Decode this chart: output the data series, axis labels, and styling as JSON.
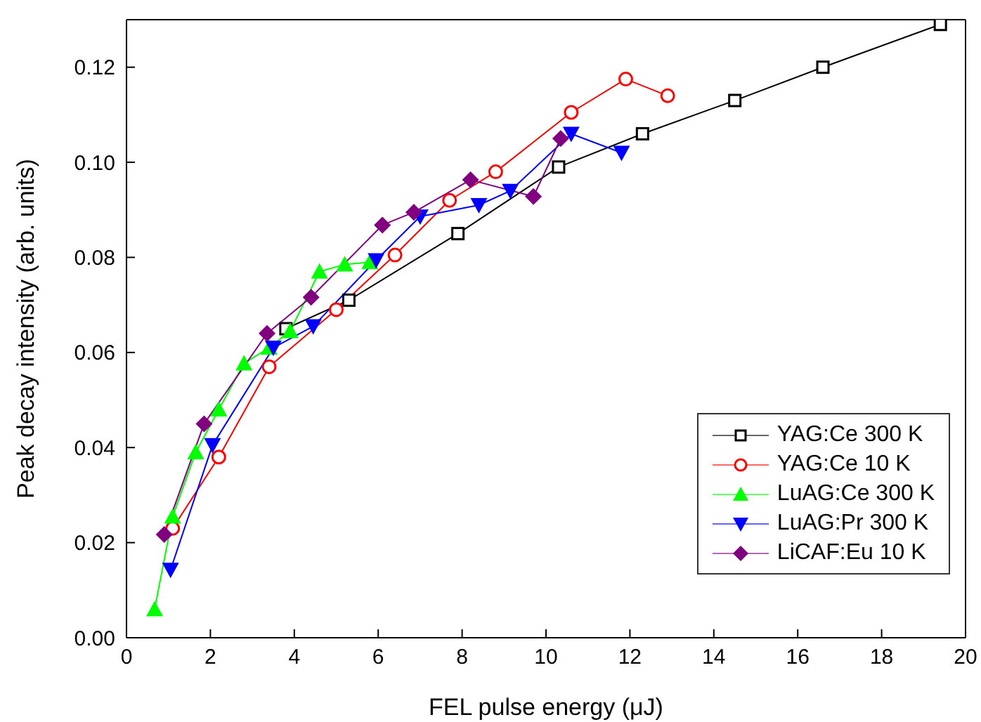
{
  "chart_data": {
    "type": "line",
    "xlabel": "FEL pulse energy (μJ)",
    "ylabel": "Peak decay intensity (arb. units)",
    "xlim": [
      0,
      20
    ],
    "xticks": [
      0,
      2,
      4,
      6,
      8,
      10,
      12,
      14,
      16,
      18,
      20
    ],
    "ylim": [
      0,
      0.13
    ],
    "yticks": [
      {
        "value": 0,
        "label": "0.00"
      },
      0.02,
      0.04,
      0.06,
      0.08,
      {
        "value": 0.1,
        "label": "0.10"
      },
      0.12
    ],
    "legend": "bottom right",
    "line_style": "solid",
    "series": [
      {
        "name": "YAG:Ce 300 K",
        "color": "#000000",
        "marker": "square",
        "x": [
          3.8,
          5.3,
          7.9,
          10.3,
          12.3,
          14.5,
          16.6,
          19.4
        ],
        "values": [
          0.065,
          0.071,
          0.085,
          0.099,
          0.106,
          0.113,
          0.12,
          0.129
        ]
      },
      {
        "name": "YAG:Ce 10 K",
        "color": "#ff0000",
        "marker": "circle",
        "x": [
          1.1,
          2.2,
          3.4,
          5.0,
          6.4,
          7.7,
          8.8,
          10.6,
          11.9,
          12.9
        ],
        "values": [
          0.023,
          0.038,
          0.057,
          0.069,
          0.0805,
          0.092,
          0.098,
          0.1105,
          0.1175,
          0.114
        ]
      },
      {
        "name": "LuAG:Ce 300 K",
        "color": "#00ff00",
        "marker": "triangle",
        "x": [
          0.67,
          1.1,
          1.65,
          2.2,
          2.8,
          3.4,
          3.9,
          4.6,
          5.2,
          5.8
        ],
        "values": [
          0.006,
          0.0255,
          0.039,
          0.048,
          0.0577,
          0.061,
          0.0645,
          0.077,
          0.0785,
          0.079
        ]
      },
      {
        "name": "LuAG:Pr 300 K",
        "color": "#0000ff",
        "marker": "triangle-down",
        "x": [
          1.05,
          2.05,
          3.5,
          4.45,
          5.95,
          7.0,
          8.4,
          9.15,
          10.6,
          11.8
        ],
        "values": [
          0.0143,
          0.0405,
          0.061,
          0.0655,
          0.0794,
          0.0886,
          0.091,
          0.094,
          0.106,
          0.102
        ]
      },
      {
        "name": "LiCAF:Eu 10 K",
        "color": "#800080",
        "marker": "diamond",
        "x": [
          0.9,
          1.85,
          3.35,
          4.4,
          6.1,
          6.85,
          8.2,
          9.7,
          10.35
        ],
        "values": [
          0.0217,
          0.045,
          0.064,
          0.0716,
          0.0868,
          0.0895,
          0.0963,
          0.0928,
          0.105
        ]
      }
    ]
  }
}
